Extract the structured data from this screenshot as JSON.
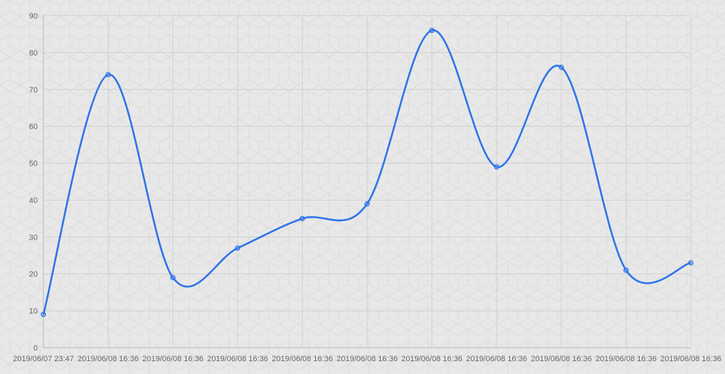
{
  "chart_data": {
    "type": "line",
    "title": "",
    "xlabel": "",
    "ylabel": "",
    "categories": [
      "2019/06/07 23:47",
      "2019/06/08 16:36",
      "2019/06/08 16:36",
      "2019/06/08 16:36",
      "2019/06/08 16:36",
      "2019/06/08 16:36",
      "2019/06/08 16:36",
      "2019/06/08 16:36",
      "2019/06/08 16:36",
      "2019/06/08 16:36",
      "2019/06/08 16:36"
    ],
    "series": [
      {
        "values": [
          9,
          74,
          19,
          27,
          35,
          39,
          86,
          49,
          76,
          21,
          23
        ],
        "color": "#2f74e8"
      }
    ],
    "ylim": [
      0,
      90
    ],
    "yticks": [
      "0",
      "10",
      "20",
      "30",
      "40",
      "50",
      "60",
      "70",
      "80",
      "90"
    ],
    "grid": true,
    "smooth": true,
    "legend": "none"
  }
}
